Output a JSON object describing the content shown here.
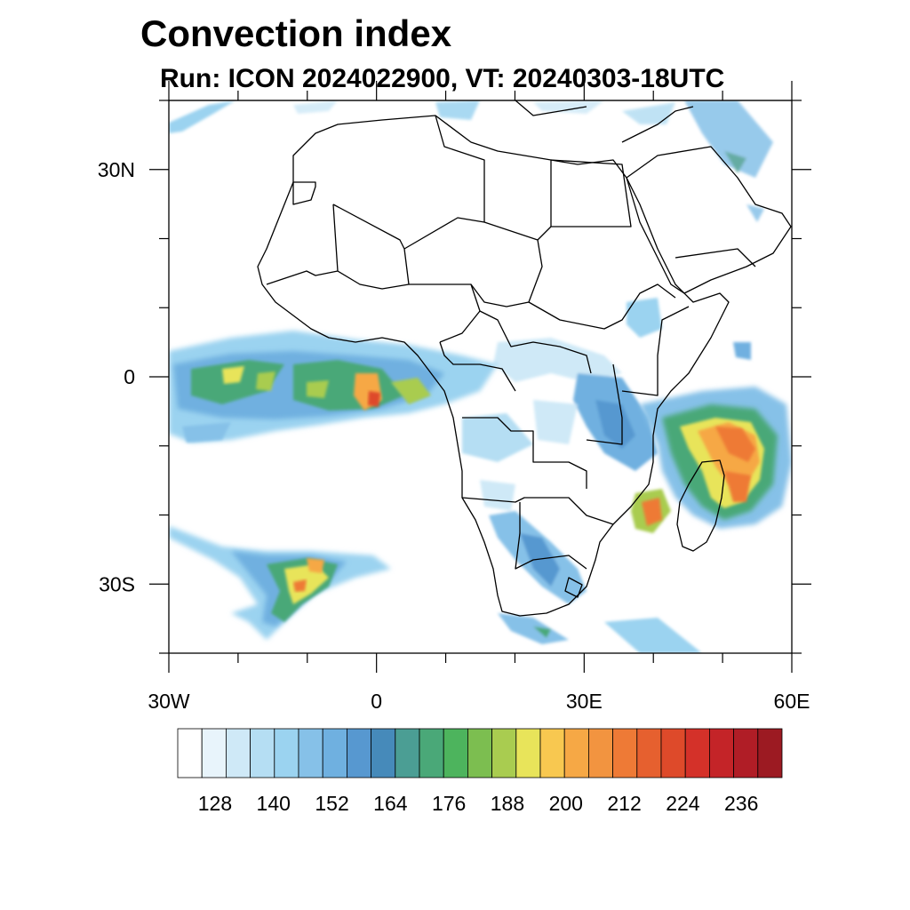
{
  "title": "Convection index",
  "subtitle": "Run: ICON 2024022900,  VT: 20240303-18UTC",
  "map": {
    "lon_range": [
      -30,
      60
    ],
    "lat_range": [
      -40,
      40
    ],
    "lat_ticks": [
      {
        "value": 30,
        "label": "30N"
      },
      {
        "value": 0,
        "label": "0"
      },
      {
        "value": -30,
        "label": "30S"
      }
    ],
    "lon_ticks": [
      {
        "value": -30,
        "label": "30W"
      },
      {
        "value": 0,
        "label": "0"
      },
      {
        "value": 30,
        "label": "30E"
      },
      {
        "value": 60,
        "label": "60E"
      }
    ]
  },
  "colorbar": {
    "colors": [
      "#ffffff",
      "#e8f4fb",
      "#cfe9f7",
      "#b5def3",
      "#9bd3f0",
      "#86c1e8",
      "#6fb0e0",
      "#5798d0",
      "#468aba",
      "#4b9e94",
      "#4aa878",
      "#4db45d",
      "#7cbe50",
      "#a9cc50",
      "#e8e45a",
      "#f8c850",
      "#f6a845",
      "#f29440",
      "#ee7a36",
      "#e6602f",
      "#de4a2a",
      "#d43129",
      "#c42428",
      "#b01d26",
      "#9c1a22"
    ],
    "labels": [
      {
        "after_index": 1,
        "text": "128"
      },
      {
        "after_index": 4,
        "text": "140"
      },
      {
        "after_index": 7,
        "text": "152"
      },
      {
        "after_index": 10,
        "text": "164"
      },
      {
        "after_index": 13,
        "text": "176"
      },
      {
        "after_index": 16,
        "text": "188"
      },
      {
        "after_index": 19,
        "text": "200"
      },
      {
        "after_index": 22,
        "text": "212"
      },
      {
        "after_index": 25,
        "text": "224"
      },
      {
        "after_index": 28,
        "text": "236"
      }
    ]
  }
}
